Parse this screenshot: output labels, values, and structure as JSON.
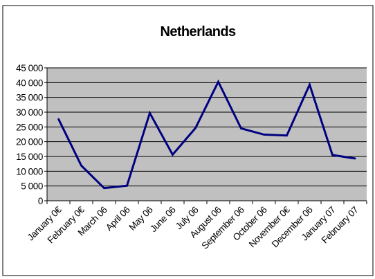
{
  "chart_data": {
    "type": "line",
    "title": "Netherlands",
    "xlabel": "",
    "ylabel": "",
    "ylim": [
      0,
      45000
    ],
    "yticks": [
      0,
      5000,
      10000,
      15000,
      20000,
      25000,
      30000,
      35000,
      40000,
      45000
    ],
    "ytick_labels": [
      "0",
      "5 000",
      "10 000",
      "15 000",
      "20 000",
      "25 000",
      "30 000",
      "35 000",
      "40 000",
      "45 000"
    ],
    "categories": [
      "January 06",
      "February 06",
      "March 06",
      "April 06",
      "May 06",
      "June 06",
      "July 06",
      "August 06",
      "September 06",
      "October 06",
      "November 06",
      "December 06",
      "January 07",
      "February 07"
    ],
    "x_tick_labels_shown": [
      "January 0€",
      "February 0€",
      "March 06",
      "April 06",
      "May 06",
      "June 06",
      "July 06",
      "August 06",
      "September 06",
      "October 06",
      "November 0€",
      "December 06",
      "January 07",
      "February 07"
    ],
    "series": [
      {
        "values": [
          27700,
          11900,
          4300,
          5100,
          29700,
          15600,
          24600,
          40300,
          24500,
          22400,
          22100,
          39300,
          15500,
          14300
        ]
      }
    ],
    "grid": true,
    "legend": "none",
    "colors": {
      "line": "#000080",
      "plot_bg": "#c0c0c0",
      "grid": "#000000",
      "frame": "#000000"
    }
  }
}
